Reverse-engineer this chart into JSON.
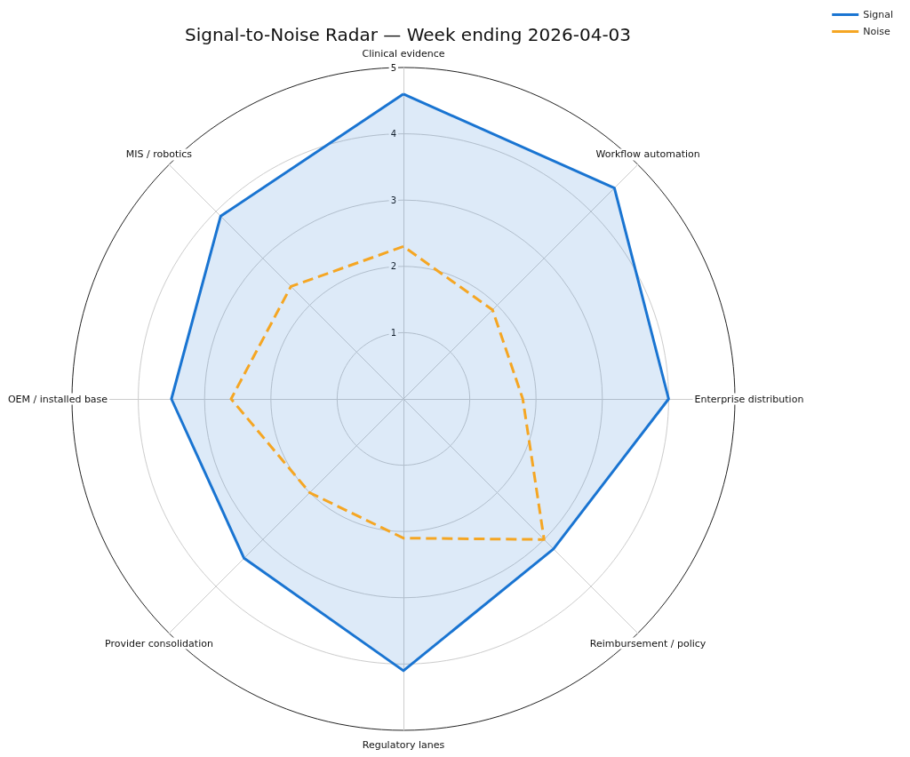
{
  "chart_data": {
    "type": "radar",
    "title": "Signal-to-Noise Radar — Week ending 2026-04-03",
    "categories": [
      "Clinical evidence",
      "Workflow automation",
      "Enterprise distribution",
      "Reimbursement / policy",
      "Regulatory lanes",
      "Provider consolidation",
      "OEM / installed base",
      "MIS / robotics"
    ],
    "series": [
      {
        "name": "Signal",
        "color": "#1a75d2",
        "line_style": "solid",
        "values": [
          4.6,
          4.5,
          4.0,
          3.2,
          4.1,
          3.4,
          3.5,
          3.9
        ]
      },
      {
        "name": "Noise",
        "color": "#f5a623",
        "line_style": "dashed",
        "values": [
          2.3,
          1.9,
          1.8,
          3.0,
          2.1,
          2.0,
          2.6,
          2.4
        ]
      }
    ],
    "ylim": [
      0,
      5
    ],
    "yticks": [
      1,
      2,
      3,
      4,
      5
    ],
    "grid": true,
    "legend": "top right",
    "marker": "none"
  }
}
